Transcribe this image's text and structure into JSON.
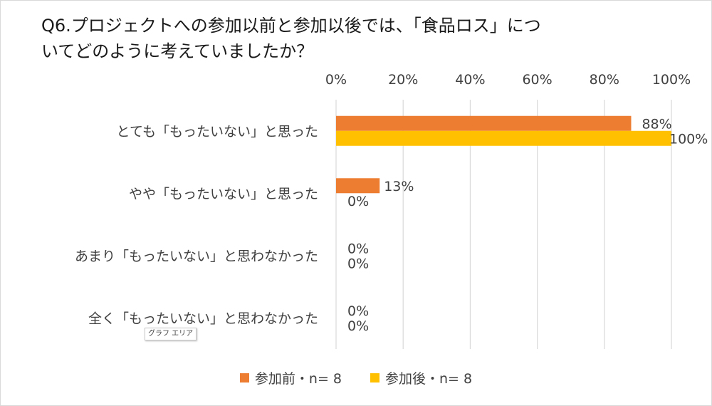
{
  "chart_data": {
    "type": "bar",
    "orientation": "horizontal",
    "title": "Q6.プロジェクトへの参加以前と参加以後では、「食品ロス」について どのように考えていましたか？",
    "title_lines": [
      "Q6.プロジェクトへの参加以前と参加以後では、「食品ロス」につ",
      "いてどのように考えていましたか？"
    ],
    "categories": [
      "とても「もったいない」と思った",
      "やや「もったいない」と思った",
      "あまり「もったいない」と思わなかった",
      "全く「もったいない」と思わなかった"
    ],
    "series": [
      {
        "name": "参加前・n= 8",
        "values": [
          88,
          13,
          0,
          0
        ],
        "labels": [
          "88%",
          "13%",
          "0%",
          "0%"
        ],
        "color": "#ED7D31"
      },
      {
        "name": "参加後・n= 8",
        "values": [
          100,
          0,
          0,
          0
        ],
        "labels": [
          "100%",
          "0%",
          "0%",
          "0%"
        ],
        "color": "#FFC000"
      }
    ],
    "xlim": [
      0,
      100
    ],
    "xticks": [
      0,
      20,
      40,
      60,
      80,
      100
    ],
    "xtick_labels": [
      "0%",
      "20%",
      "40%",
      "60%",
      "80%",
      "100%"
    ],
    "xaxis_position": "top",
    "grid": true,
    "legend_position": "bottom"
  },
  "tooltip": "グラフ エリア"
}
